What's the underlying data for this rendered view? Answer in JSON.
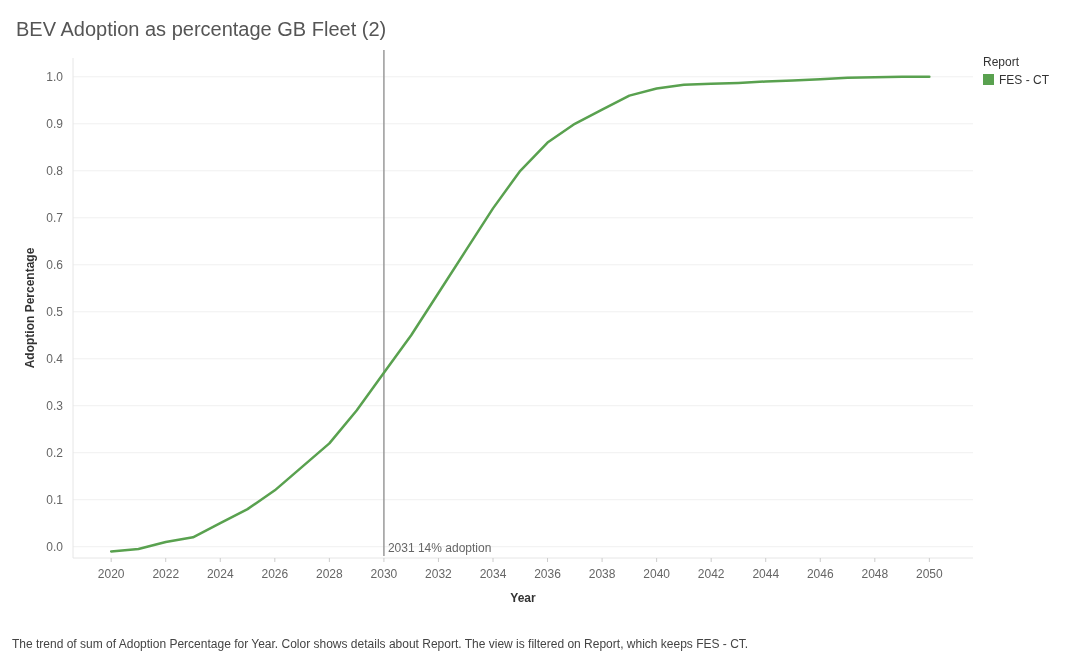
{
  "chart_data": {
    "type": "line",
    "title": "BEV Adoption as percentage GB Fleet (2)",
    "xlabel": "Year",
    "ylabel": "Adoption Percentage",
    "legend_title": "Report",
    "legend": "top right",
    "x": [
      2020,
      2021,
      2022,
      2023,
      2024,
      2025,
      2026,
      2027,
      2028,
      2029,
      2030,
      2031,
      2032,
      2033,
      2034,
      2035,
      2036,
      2037,
      2038,
      2039,
      2040,
      2041,
      2042,
      2043,
      2044,
      2045,
      2046,
      2047,
      2048,
      2049,
      2050
    ],
    "series": [
      {
        "name": "FES - CT",
        "color": "#59a14f",
        "values": [
          -0.01,
          -0.005,
          0.01,
          0.02,
          0.05,
          0.08,
          0.12,
          0.17,
          0.22,
          0.29,
          0.37,
          0.45,
          0.54,
          0.63,
          0.72,
          0.8,
          0.86,
          0.9,
          0.93,
          0.96,
          0.975,
          0.983,
          0.985,
          0.987,
          0.99,
          0.992,
          0.995,
          0.998,
          0.999,
          1.0,
          1.0
        ]
      }
    ],
    "xlim": [
      2018.6,
      2051.6
    ],
    "xticks": [
      2020,
      2022,
      2024,
      2026,
      2028,
      2030,
      2032,
      2034,
      2036,
      2038,
      2040,
      2042,
      2044,
      2046,
      2048,
      2050
    ],
    "ylim": [
      -0.024,
      1.04
    ],
    "yticks": [
      {
        "value": 0,
        "label": "0.0"
      },
      0.1,
      0.2,
      0.3,
      0.4,
      0.5,
      0.6,
      0.7,
      0.8,
      0.9,
      {
        "value": 1,
        "label": "1.0"
      }
    ],
    "grid": "y",
    "ref_lines": [
      {
        "axis": "x",
        "value": 2030,
        "label": "2031 14% adoption",
        "color": "#999999"
      }
    ],
    "annotations": [
      "The trend of sum of Adoption Percentage for Year.  Color shows details about Report. The view is filtered on Report, which keeps FES - CT."
    ]
  }
}
